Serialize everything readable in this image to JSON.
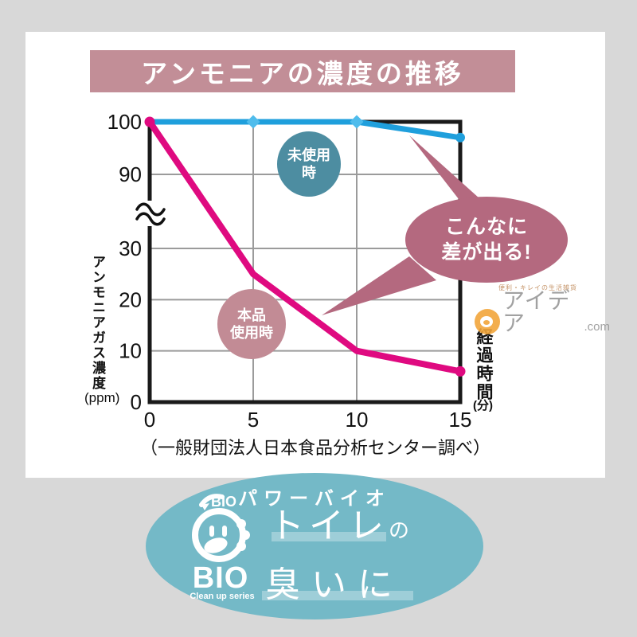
{
  "title": {
    "text": "アンモニアの濃度の推移"
  },
  "chart_data": {
    "type": "line",
    "x": [
      0,
      5,
      10,
      15
    ],
    "x_ticks": [
      0,
      5,
      10,
      15
    ],
    "y_ticks": [
      0,
      10,
      20,
      30,
      90,
      100
    ],
    "grid_y": [
      10,
      20,
      30,
      90
    ],
    "grid_x": [
      5,
      10
    ],
    "axis_break": true,
    "axis_break_between": [
      30,
      90
    ],
    "series": [
      {
        "name": "未使用時",
        "color": "#1f9fdc",
        "values": [
          100,
          100,
          100,
          97
        ]
      },
      {
        "name": "本品使用時",
        "color": "#df0a80",
        "values": [
          100,
          25,
          10,
          6
        ]
      }
    ],
    "ylabel": "アンモニアガス濃度",
    "ylabel_unit": "(ppm)",
    "xlabel": "経過時間",
    "xlabel_unit": "(分)",
    "legend_position": "on-chart-circles",
    "grid": true
  },
  "labels": {
    "unused": {
      "line1": "未使用",
      "line2": "時",
      "bg": "#4d8da1"
    },
    "used": {
      "line1": "本品",
      "line2": "使用時",
      "bg": "#c28b95"
    },
    "bubble": {
      "line1": "こんなに",
      "line2": "差が出る!",
      "bg": "#b4697f"
    }
  },
  "source": "（一般財団法人日本食品分析センター調べ）",
  "watermark": {
    "tagline": "便利・キレイの生活雑貨",
    "brand": "アイデア",
    "suffix": ".com"
  },
  "footer": {
    "brand_top": "パワーバイオ",
    "logo_small": "BIO",
    "logo_big": "BIO",
    "logo_sub": "Clean up series",
    "line1_big": "トイレ",
    "line1_small": "の",
    "line2": "臭いに"
  },
  "colors": {
    "page_bg": "#d8d8d8",
    "panel_bg": "#ffffff",
    "banner_bg": "#c28e97",
    "oval_bg": "#74b9c7",
    "line_unused": "#1f9fdc",
    "line_used": "#df0a80",
    "bubble_bg": "#b4697f"
  }
}
